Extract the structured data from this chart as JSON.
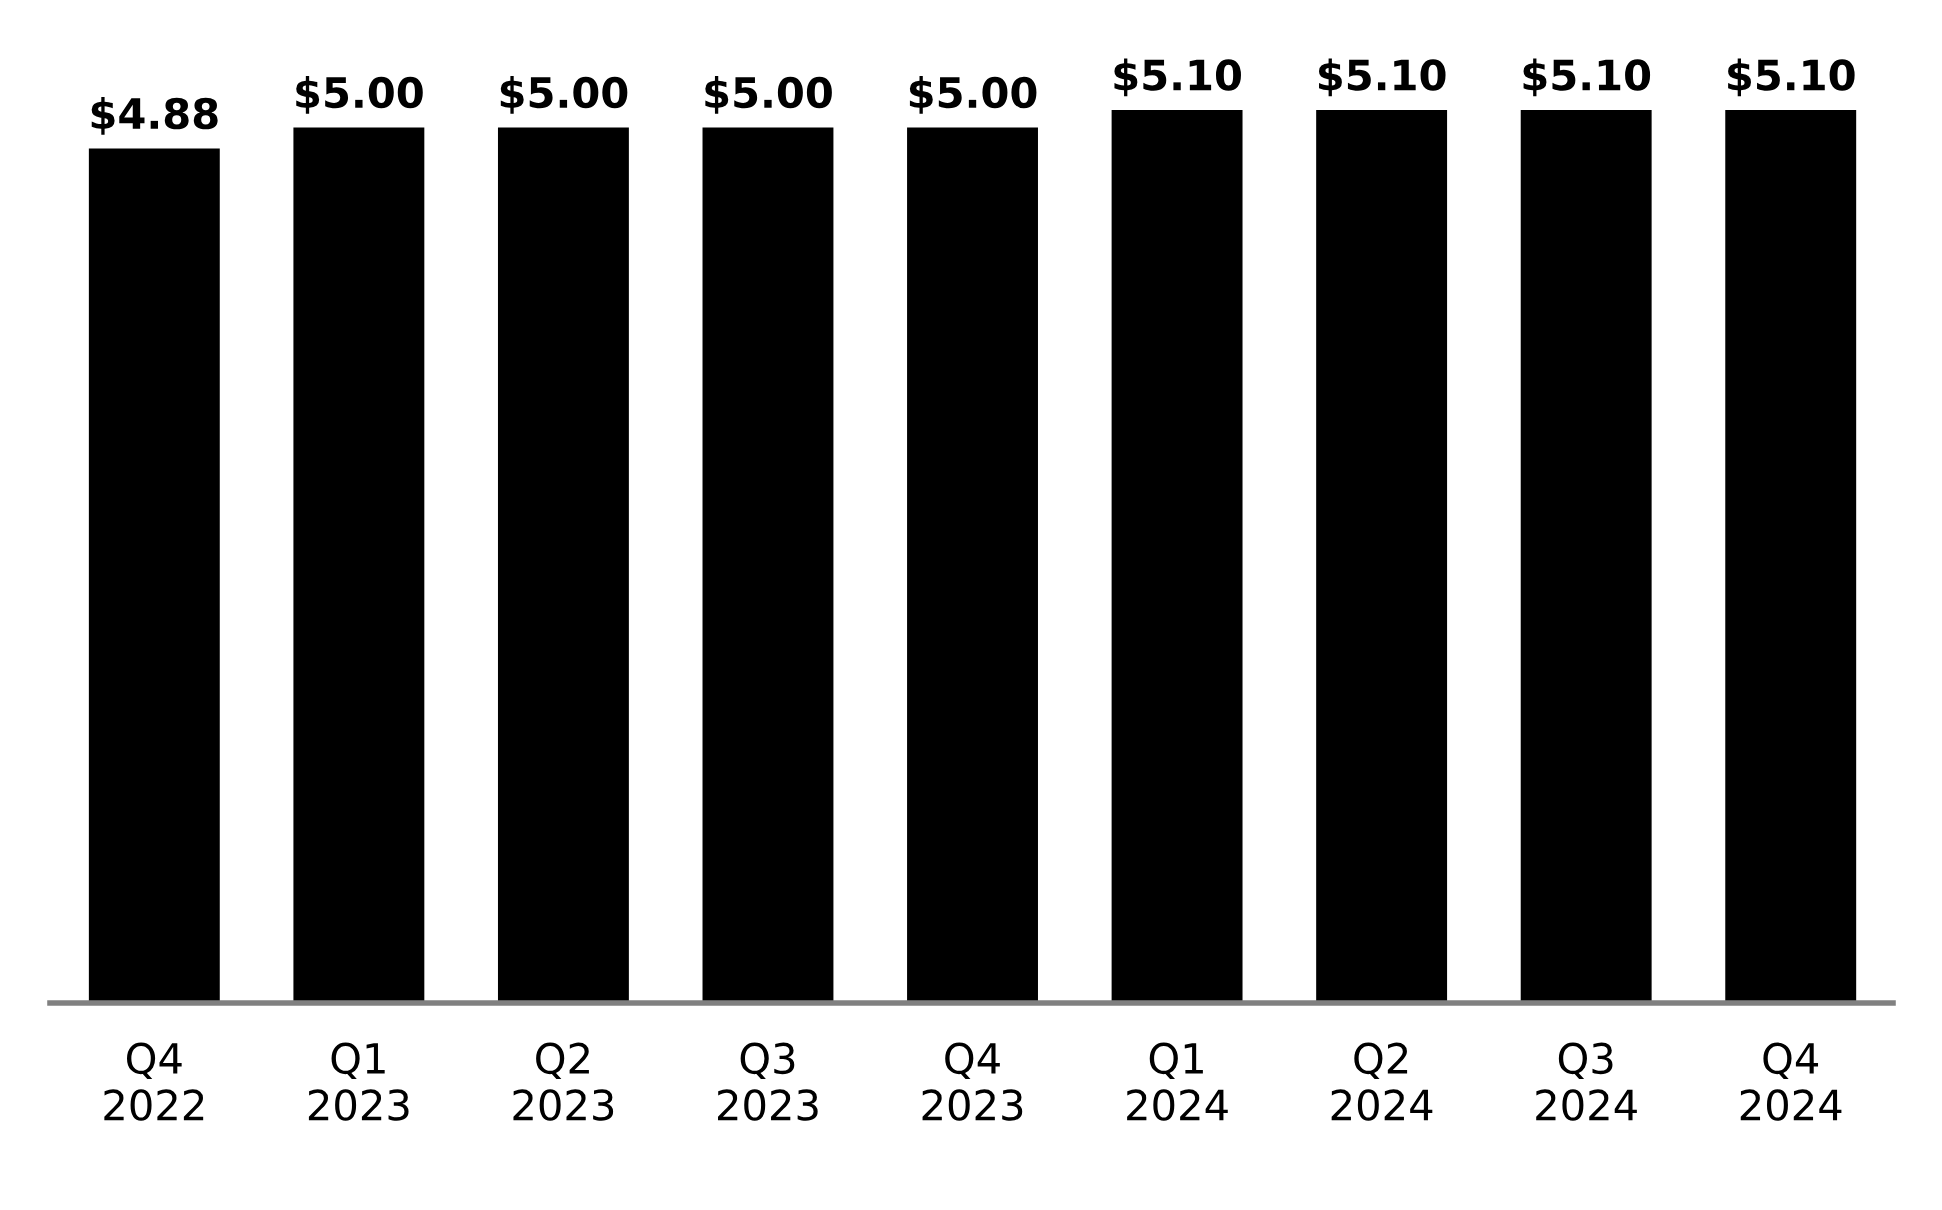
{
  "chart_data": {
    "type": "bar",
    "categories": [
      "Q4\n2022",
      "Q1\n2023",
      "Q2\n2023",
      "Q3\n2023",
      "Q4\n2023",
      "Q1\n2024",
      "Q2\n2024",
      "Q3\n2024",
      "Q4\n2024"
    ],
    "values": [
      4.88,
      5.0,
      5.0,
      5.0,
      5.0,
      5.1,
      5.1,
      5.1,
      5.1
    ],
    "value_labels": [
      "$4.88",
      "$5.00",
      "$5.00",
      "$5.00",
      "$5.00",
      "$5.10",
      "$5.10",
      "$5.10",
      "$5.10"
    ],
    "color": "#000000",
    "tick_labels": "x",
    "grid": false,
    "legend": false
  }
}
